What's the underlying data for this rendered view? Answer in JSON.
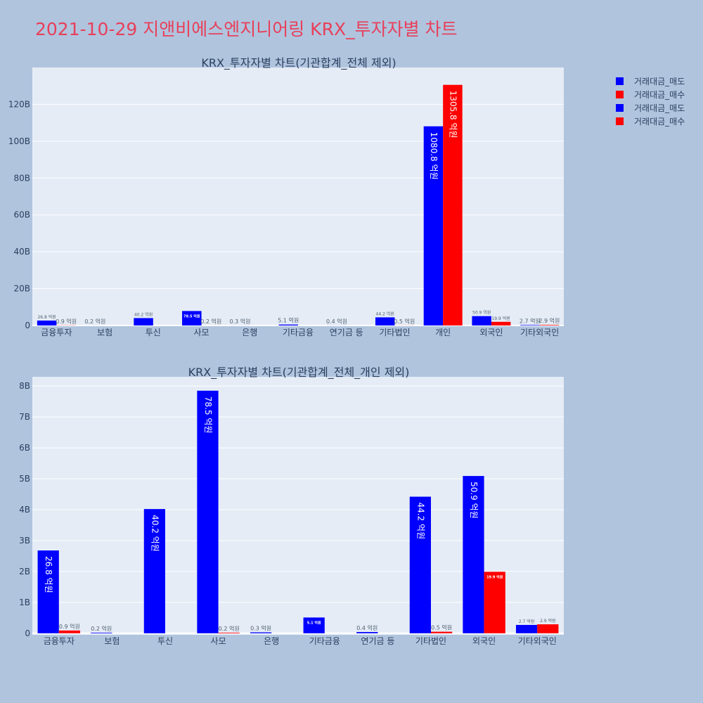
{
  "title": "2021-10-29 지앤비에스엔지니어링 KRX_투자자별 차트",
  "colors": {
    "sell": "#0000ff",
    "buy": "#ff0000",
    "plot_bg": "#e5ecf6",
    "page_bg": "#b0c4de"
  },
  "legend": [
    {
      "label": "거래대금_매도",
      "color": "#0000ff"
    },
    {
      "label": "거래대금_매수",
      "color": "#ff0000"
    },
    {
      "label": "거래대금_매도",
      "color": "#0000ff"
    },
    {
      "label": "거래대금_매수",
      "color": "#ff0000"
    }
  ],
  "chart_data": [
    {
      "type": "bar",
      "title": "KRX_투자자별 차트(기관합계_전체 제외)",
      "categories": [
        "금융투자",
        "보험",
        "투신",
        "사모",
        "은행",
        "기타금융",
        "연기금 등",
        "기타법인",
        "개인",
        "외국인",
        "기타외국인"
      ],
      "ylim": [
        0,
        140
      ],
      "yticks": [
        0,
        20,
        40,
        60,
        80,
        100,
        120
      ],
      "ytick_labels": [
        "0",
        "20B",
        "40B",
        "60B",
        "80B",
        "100B",
        "120B"
      ],
      "series": [
        {
          "name": "거래대금_매도",
          "color": "#0000ff",
          "values": [
            2.68,
            0.02,
            4.02,
            7.85,
            0.03,
            0.51,
            0.04,
            4.42,
            108.08,
            5.09,
            0.27
          ],
          "labels": [
            "26.8 억원",
            "0.2 억원",
            "40.2 억원",
            "78.5 억원",
            "0.3 억원",
            "5.1 억원",
            "0.4 억원",
            "44.2 억원",
            "1080.8 억원",
            "50.9 억원",
            "2.7 억원"
          ]
        },
        {
          "name": "거래대금_매수",
          "color": "#ff0000",
          "values": [
            0.09,
            0,
            0,
            0.02,
            0,
            0,
            0,
            0.05,
            130.58,
            1.99,
            0.29
          ],
          "labels": [
            "0.9 억원",
            "",
            "",
            "0.2 억원",
            "",
            "",
            "",
            "0.5 억원",
            "1305.8 억원",
            "19.9 억원",
            "2.9 억원"
          ]
        }
      ]
    },
    {
      "type": "bar",
      "title": "KRX_투자자별 차트(기관합계_전체_개인 제외)",
      "categories": [
        "금융투자",
        "보험",
        "투신",
        "사모",
        "은행",
        "기타금융",
        "연기금 등",
        "기타법인",
        "외국인",
        "기타외국인"
      ],
      "ylim": [
        -0.05,
        8.3
      ],
      "yticks": [
        0,
        1,
        2,
        3,
        4,
        5,
        6,
        7,
        8
      ],
      "ytick_labels": [
        "0",
        "1B",
        "2B",
        "3B",
        "4B",
        "5B",
        "6B",
        "7B",
        "8B"
      ],
      "series": [
        {
          "name": "거래대금_매도",
          "color": "#0000ff",
          "values": [
            2.68,
            0.02,
            4.02,
            7.85,
            0.03,
            0.51,
            0.04,
            4.42,
            5.09,
            0.27
          ],
          "labels": [
            "26.8 억원",
            "0.2 억원",
            "40.2 억원",
            "78.5 억원",
            "0.3 억원",
            "5.1 억원",
            "0.4 억원",
            "44.2 억원",
            "50.9 억원",
            "2.7 억원"
          ]
        },
        {
          "name": "거래대금_매수",
          "color": "#ff0000",
          "values": [
            0.09,
            0,
            0,
            0.02,
            0,
            0,
            0,
            0.05,
            1.99,
            0.29
          ],
          "labels": [
            "0.9 억원",
            "",
            "",
            "0.2 억원",
            "",
            "",
            "",
            "0.5 억원",
            "19.9 억원",
            "2.9 억원"
          ]
        }
      ]
    }
  ]
}
